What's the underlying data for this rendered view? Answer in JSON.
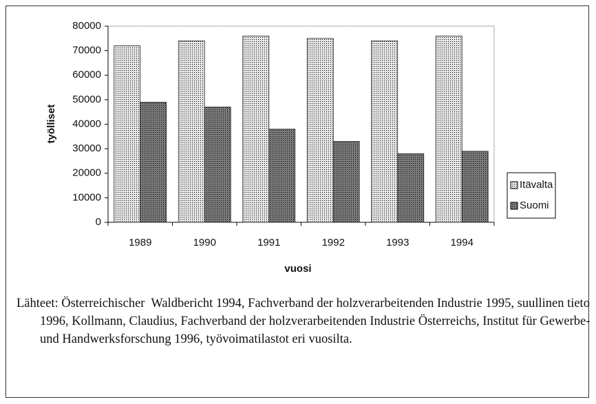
{
  "chart_data": {
    "type": "bar",
    "categories": [
      "1989",
      "1990",
      "1991",
      "1992",
      "1993",
      "1994"
    ],
    "series": [
      {
        "name": "Itävalta",
        "color": "#e4e4e4",
        "values": [
          72000,
          74000,
          76000,
          75000,
          74000,
          76000
        ]
      },
      {
        "name": "Suomi",
        "color": "#7a7a7a",
        "values": [
          49000,
          47000,
          38000,
          33000,
          28000,
          29000
        ]
      }
    ],
    "ylim": [
      0,
      80000
    ],
    "yticks": [
      0,
      10000,
      20000,
      30000,
      40000,
      50000,
      60000,
      70000,
      80000
    ],
    "ylabel": "työlliset",
    "xlabel": "vuosi",
    "legend": "right"
  },
  "source": "Lähteet: Österreichischer  Waldbericht 1994, Fachverband der holzverarbeitenden Industrie 1995, suullinen tieto 1996, Kollmann, Claudius, Fachverband der holzverarbeitenden Industrie Österreichs, Institut für Gewerbe- und Handwerksforschung 1996, työvoimatilastot eri vuosilta."
}
